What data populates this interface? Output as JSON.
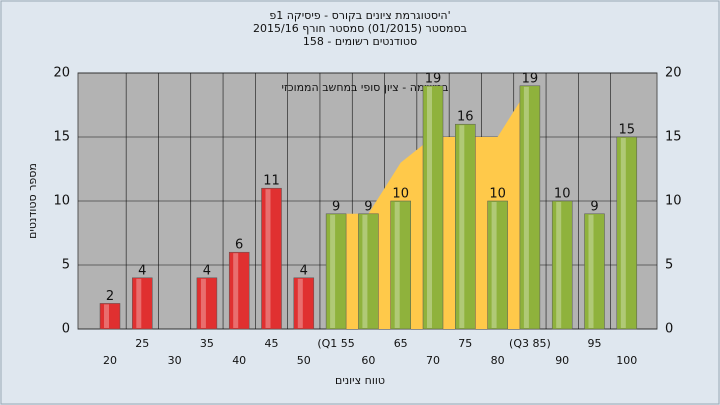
{
  "chart_data": {
    "type": "bar",
    "title": [
      "'היסטוגרמת ציונים בקורס - פיסיקה 1פ",
      "בסמסטר (01/2015) סמסטר חורף 2015/16",
      "סטודנטים רשומים - 158"
    ],
    "ylabel": "מספר סטודנטים",
    "xlabel": "טווח ציונים",
    "categories": [
      "20",
      "25",
      "30",
      "35",
      "40",
      "45",
      "50",
      "(Q1 55",
      "60",
      "65",
      "70",
      "75",
      "80",
      "(Q3 85)",
      "90",
      "95",
      "100"
    ],
    "values": [
      2,
      4,
      null,
      4,
      6,
      11,
      4,
      9,
      9,
      10,
      19,
      16,
      10,
      19,
      10,
      9,
      15
    ],
    "colors": [
      "#e03030",
      "#e03030",
      "#e03030",
      "#e03030",
      "#e03030",
      "#e03030",
      "#e03030",
      "#8fb23c",
      "#8fb23c",
      "#8fb23c",
      "#8fb23c",
      "#8fb23c",
      "#8fb23c",
      "#8fb23c",
      "#8fb23c",
      "#8fb23c",
      "#8fb23c"
    ],
    "area": {
      "name": "במשימה - ציון סופי במחשב הממוכזי",
      "color": "#ffc94a",
      "values": [
        null,
        null,
        null,
        null,
        null,
        null,
        null,
        9,
        9,
        13,
        15,
        15,
        15,
        19,
        null,
        null,
        null
      ]
    },
    "ylim": [
      0,
      20
    ],
    "yticks": [
      0,
      5,
      10,
      15,
      20
    ],
    "y2lim": [
      0,
      20
    ],
    "y2ticks": [
      0,
      5,
      10,
      15,
      20
    ],
    "grid": true
  }
}
